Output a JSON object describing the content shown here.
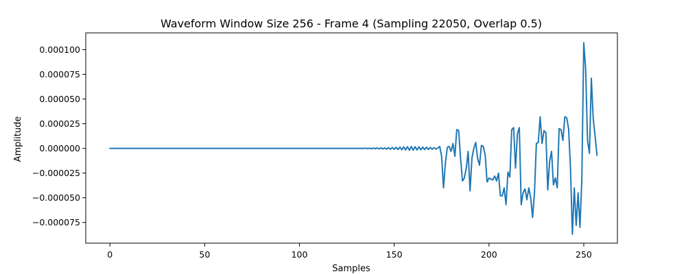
{
  "chart_data": {
    "type": "line",
    "title": "Waveform Window Size 256 - Frame 4 (Sampling 22050, Overlap 0.5)",
    "xlabel": "Samples",
    "ylabel": "Amplitude",
    "xlim": [
      -12.75,
      267.75
    ],
    "ylim": [
      -9.6e-05,
      0.000117
    ],
    "xticks": [
      0,
      50,
      100,
      150,
      200,
      250
    ],
    "xtick_labels": [
      "0",
      "50",
      "100",
      "150",
      "200",
      "250"
    ],
    "yticks": [
      -7.5e-05,
      -5e-05,
      -2.5e-05,
      0,
      2.5e-05,
      5e-05,
      7.5e-05,
      0.0001
    ],
    "ytick_labels": [
      "−0.000075",
      "−0.000050",
      "−0.000025",
      "0.000000",
      "0.000025",
      "0.000050",
      "0.000075",
      "0.000100"
    ],
    "grid": false,
    "color": "#1f77b4",
    "series": [
      {
        "x_start": 0,
        "x_step": 1,
        "values": [
          0,
          0,
          0,
          0,
          0,
          0,
          0,
          0,
          0,
          0,
          0,
          0,
          0,
          0,
          0,
          0,
          0,
          0,
          0,
          0,
          0,
          0,
          0,
          0,
          0,
          0,
          0,
          0,
          0,
          0,
          0,
          0,
          0,
          0,
          0,
          0,
          0,
          0,
          0,
          0,
          0,
          0,
          0,
          0,
          0,
          0,
          0,
          0,
          0,
          0,
          0,
          0,
          0,
          0,
          0,
          0,
          0,
          0,
          0,
          0,
          0,
          0,
          0,
          0,
          0,
          0,
          0,
          0,
          0,
          0,
          0,
          0,
          0,
          0,
          0,
          0,
          0,
          0,
          0,
          0,
          0,
          0,
          0,
          0,
          0,
          0,
          0,
          0,
          0,
          0,
          0,
          0,
          0,
          0,
          0,
          0,
          0,
          0,
          0,
          0,
          0,
          0,
          0,
          0,
          0,
          0,
          0,
          0,
          0,
          0,
          0,
          0,
          0,
          0,
          0,
          0,
          0,
          0,
          0,
          0,
          0,
          0,
          0,
          0,
          0,
          0,
          0,
          0,
          0,
          0,
          0,
          0,
          0,
          0,
          0,
          3e-07,
          -3e-07,
          3e-07,
          -4e-07,
          4e-07,
          -4e-07,
          5e-07,
          -5e-07,
          5e-07,
          -6e-07,
          6e-07,
          -7e-07,
          7e-07,
          -8e-07,
          9e-07,
          -1e-06,
          1.1e-06,
          -1.2e-06,
          1.3e-06,
          -1.4e-06,
          1.5e-06,
          -1.6e-06,
          1.7e-06,
          -1.8e-06,
          1.9e-06,
          -1.8e-06,
          1.7e-06,
          -1.6e-06,
          1.5e-06,
          -1.4e-06,
          1.3e-06,
          -1.2e-06,
          1.2e-06,
          -1.1e-06,
          1e-06,
          -9e-07,
          8e-07,
          -7e-07,
          5e-07,
          2e-06,
          -8e-06,
          -4e-05,
          -1.5e-05,
          1e-06,
          2e-06,
          -3e-06,
          5e-06,
          -8e-06,
          1.9e-05,
          1.8e-05,
          -1e-05,
          -3.3e-05,
          -3e-05,
          -2e-05,
          -3e-06,
          -4.3e-05,
          -1e-05,
          0.0,
          6e-06,
          -1e-05,
          -1.7e-05,
          3e-06,
          2e-06,
          -7e-06,
          -3.4e-05,
          -3e-05,
          -3.1e-05,
          -3.2e-05,
          -2.8e-05,
          -3.3e-05,
          -2.5e-05,
          -4.8e-05,
          -4.8e-05,
          -4e-05,
          -5.7e-05,
          -2.4e-05,
          -2.9e-05,
          1.9e-05,
          2.1e-05,
          -2e-05,
          1.5e-05,
          2.1e-05,
          -5.7e-05,
          -4.5e-05,
          -4.1e-05,
          -5.2e-05,
          -4e-05,
          -5e-05,
          -7e-05,
          -4.5e-05,
          5e-06,
          6e-06,
          3.2e-05,
          5e-06,
          1.8e-05,
          1.6e-05,
          -4.2e-05,
          -1.3e-05,
          -3e-06,
          -3.7e-05,
          -3e-05,
          -4e-05,
          2e-05,
          1.9e-05,
          8e-06,
          3.2e-05,
          3.1e-05,
          2e-05,
          -2e-05,
          -8.7e-05,
          -4e-05,
          -7.8e-05,
          -4.5e-05,
          -8e-05,
          -3e-05,
          0.000107,
          8e-05,
          8e-06,
          -5e-06,
          7.1e-05,
          3e-05,
          1.2e-05,
          -7e-06
        ]
      }
    ]
  }
}
